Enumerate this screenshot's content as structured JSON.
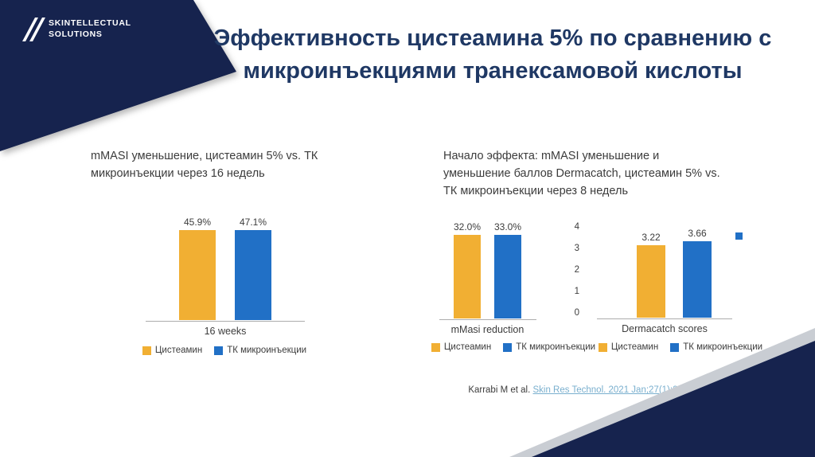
{
  "slide": {
    "logo": {
      "brand_line1": "SKINTELLECTUAL",
      "brand_line2": "SOLUTIONS"
    },
    "title": "Эффективность цистеамина 5% по сравнению с микроинъекциями транексамовой кислоты",
    "citation": {
      "prefix": "Karrabi M et al. ",
      "link": "Skin Res Technol. 2021 Jan;27(1):24-31."
    }
  },
  "colors": {
    "navy": "#16234E",
    "title_text": "#1F3864",
    "cysteamine_yellow": "#F1AF33",
    "tk_blue": "#2170C6",
    "link": "#79AFCE"
  },
  "chart_data": [
    {
      "type": "bar",
      "title": "mMASI уменьшение, цистеамин 5% vs. ТК микроинъекции через 16 недель",
      "category": "16 weeks",
      "series": [
        {
          "name": "Цистеамин",
          "value": 45.9,
          "label": "45.9%",
          "color": "#F1AF33"
        },
        {
          "name": "ТК микроинъекции",
          "value": 47.1,
          "label": "47.1%",
          "color": "#2170C6"
        }
      ],
      "ylim": [
        0,
        50
      ],
      "y_axis_visible": false,
      "grid": false,
      "legend_position": "bottom"
    },
    {
      "type": "bar",
      "title": "Начало эффекта: mMASI уменьшение и уменьшение баллов Dermacatch, цистеамин 5% vs. ТК микроинъекции через 8 недель",
      "subcharts": [
        {
          "category": "mMasi reduction",
          "ylim": [
            0,
            35
          ],
          "y_axis_visible": false,
          "series": [
            {
              "name": "Цистеамин",
              "value": 32.0,
              "label": "32.0%",
              "color": "#F1AF33"
            },
            {
              "name": "ТК микроинъекции",
              "value": 33.0,
              "label": "33.0%",
              "color": "#2170C6"
            }
          ]
        },
        {
          "category": "Dermacatch scores",
          "ylim": [
            0,
            4
          ],
          "y_axis_visible": true,
          "y_axis_ticks": [
            "4",
            "3",
            "2",
            "1",
            "0"
          ],
          "series": [
            {
              "name": "Цистеамин",
              "value": 3.22,
              "label": "3.22",
              "color": "#F1AF33"
            },
            {
              "name": "ТК микроинъекции",
              "value": 3.66,
              "label": "3.66",
              "color": "#2170C6"
            }
          ]
        }
      ],
      "grid": false,
      "legend_position": "bottom"
    }
  ]
}
